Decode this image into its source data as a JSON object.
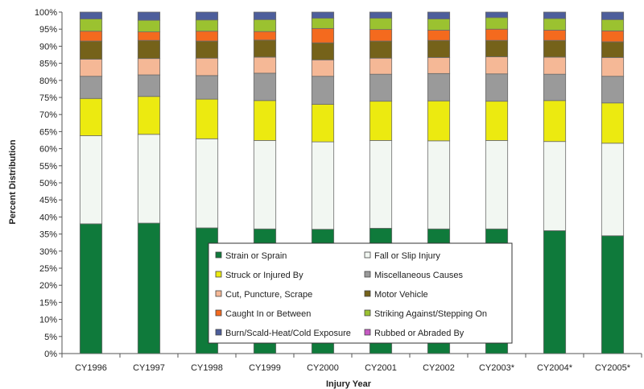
{
  "chart_data": {
    "type": "bar",
    "stacked": true,
    "percent": true,
    "title": "",
    "xlabel": "Injury Year",
    "ylabel": "Percent Distribution",
    "ylim": [
      0,
      100
    ],
    "yticks": [
      "0%",
      "5%",
      "10%",
      "15%",
      "20%",
      "25%",
      "30%",
      "35%",
      "40%",
      "45%",
      "50%",
      "55%",
      "60%",
      "65%",
      "70%",
      "75%",
      "80%",
      "85%",
      "90%",
      "95%",
      "100%"
    ],
    "categories": [
      "CY1996",
      "CY1997",
      "CY1998",
      "CY1999",
      "CY2000",
      "CY2001",
      "CY2002",
      "CY2003*",
      "CY2004*",
      "CY2005*"
    ],
    "grid": false,
    "legend_position": "bottom-center-inside",
    "series": [
      {
        "name": "Strain or Sprain",
        "color": "#0f7a3b",
        "values": [
          38.0,
          38.2,
          36.8,
          36.5,
          36.4,
          36.7,
          36.5,
          36.5,
          36.0,
          34.5
        ]
      },
      {
        "name": "Fall or Slip Injury",
        "color": "#f2f7f2",
        "values": [
          25.8,
          26.0,
          26.1,
          25.9,
          25.6,
          25.7,
          25.8,
          25.9,
          26.1,
          27.1
        ]
      },
      {
        "name": "Struck or Injured By",
        "color": "#ecea10",
        "values": [
          10.9,
          11.1,
          11.6,
          11.7,
          11.0,
          11.5,
          11.7,
          11.5,
          12.0,
          11.8
        ]
      },
      {
        "name": "Miscellaneous Causes",
        "color": "#9a9a9a",
        "values": [
          6.5,
          6.3,
          6.9,
          8.0,
          8.2,
          7.9,
          8.0,
          8.0,
          7.7,
          7.8
        ]
      },
      {
        "name": "Cut, Puncture, Scrape",
        "color": "#f5b896",
        "values": [
          5.0,
          4.8,
          5.1,
          4.7,
          4.8,
          4.7,
          4.7,
          5.0,
          5.0,
          5.5
        ]
      },
      {
        "name": "Motor Vehicle",
        "color": "#75621a",
        "values": [
          5.3,
          5.3,
          5.0,
          5.0,
          5.0,
          5.0,
          5.0,
          4.8,
          4.9,
          4.6
        ]
      },
      {
        "name": "Caught In or Between",
        "color": "#f46a1e",
        "values": [
          2.9,
          2.5,
          2.9,
          2.5,
          4.2,
          3.4,
          3.0,
          3.3,
          3.0,
          3.2
        ]
      },
      {
        "name": "Striking Against/Stepping On",
        "color": "#9bc230",
        "values": [
          3.6,
          3.4,
          3.3,
          3.5,
          3.0,
          3.3,
          3.3,
          3.4,
          3.4,
          3.3
        ]
      },
      {
        "name": "Burn/Scald-Heat/Cold Exposure",
        "color": "#4d5e9b",
        "values": [
          2.0,
          2.4,
          2.3,
          2.2,
          1.8,
          1.8,
          2.0,
          1.6,
          1.9,
          2.2
        ]
      },
      {
        "name": "Rubbed or Abraded By",
        "color": "#c659c3",
        "values": [
          0,
          0,
          0,
          0,
          0,
          0,
          0,
          0,
          0,
          0
        ]
      }
    ]
  }
}
